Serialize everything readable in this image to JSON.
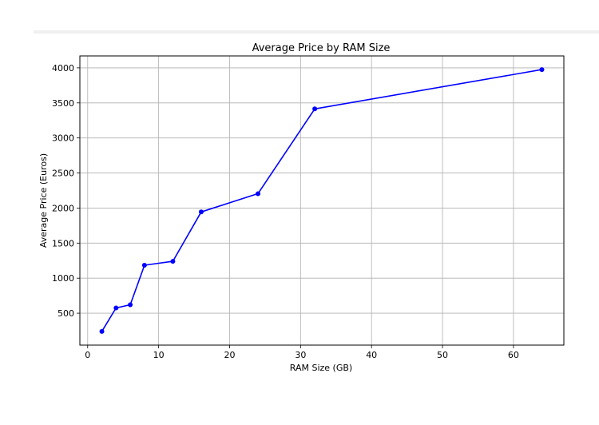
{
  "chart_data": {
    "type": "line",
    "title": "Average Price by RAM Size",
    "xlabel": "RAM Size (GB)",
    "ylabel": "Average Price (Euros)",
    "x": [
      2,
      4,
      6,
      8,
      12,
      16,
      24,
      32,
      64
    ],
    "series": [
      {
        "values": [
          240,
          575,
          620,
          1185,
          1240,
          1945,
          2205,
          3415,
          3975
        ],
        "color": "#0000ff",
        "marker": "circle"
      }
    ],
    "xlim": [
      -1.1,
      67.1
    ],
    "ylim": [
      45,
      4170
    ],
    "xticks": [
      0,
      10,
      20,
      30,
      40,
      50,
      60
    ],
    "yticks": [
      500,
      1000,
      1500,
      2000,
      2500,
      3000,
      3500,
      4000
    ],
    "grid": true,
    "grid_color": "#b0b0b0",
    "legend": null
  }
}
